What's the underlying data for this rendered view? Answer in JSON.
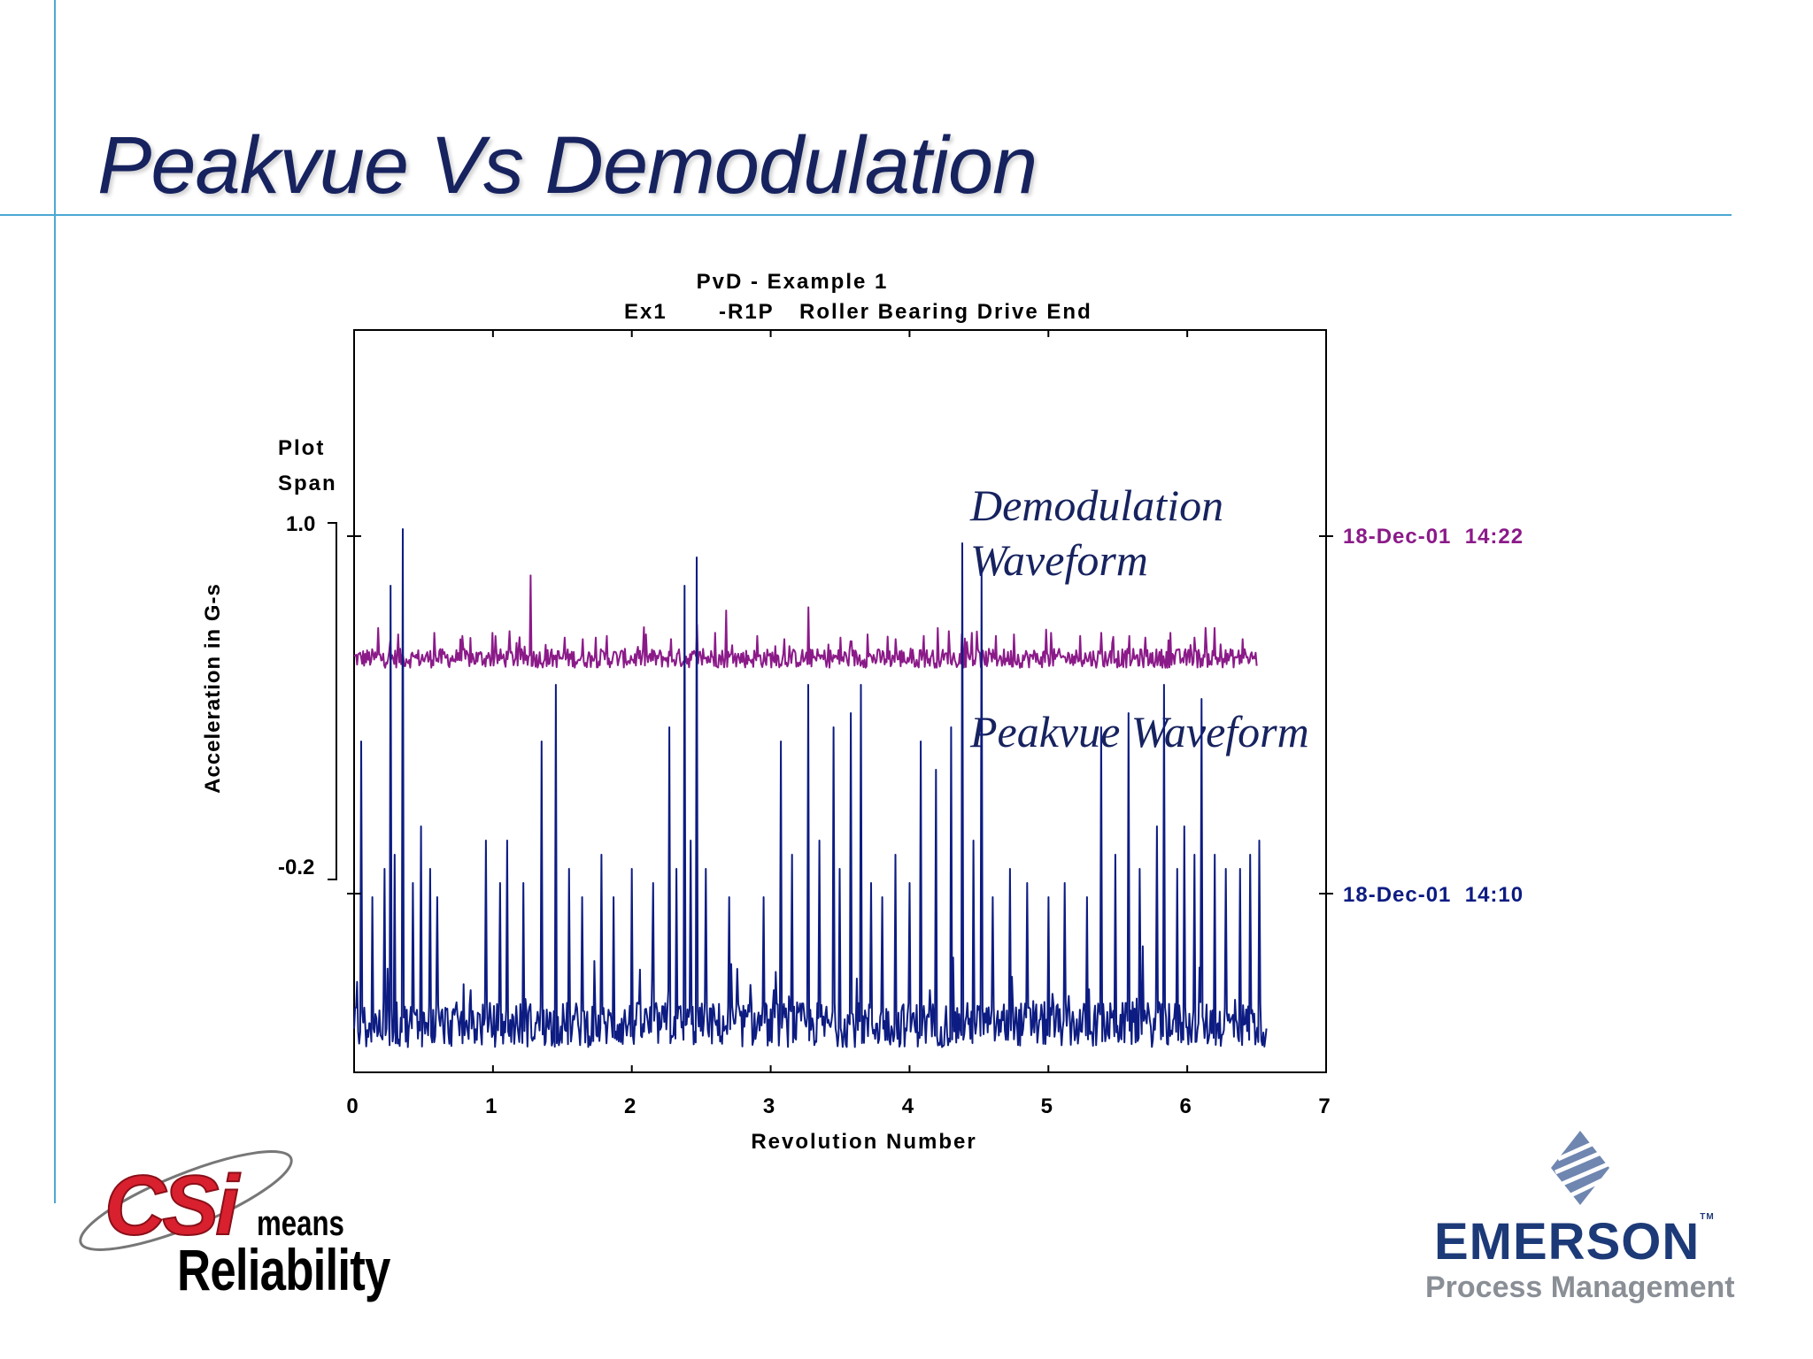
{
  "slide": {
    "title": "Peakvue Vs Demodulation"
  },
  "chart_data": {
    "type": "line",
    "title": "PvD  - Example 1",
    "subtitle": [
      "Ex1",
      "-R1P",
      "Roller Bearing Drive End"
    ],
    "xlabel": "Revolution Number",
    "ylabel": "Acceleration in G-s",
    "xlim": [
      0,
      7
    ],
    "x_ticks": [
      "0",
      "1",
      "2",
      "3",
      "4",
      "5",
      "6",
      "7"
    ],
    "plot_span": {
      "label_line1": "Plot",
      "label_line2": "Span",
      "top": "1.0",
      "bottom": "-0.2"
    },
    "annotations": [
      "Demodulation",
      "Waveform",
      "Peakvue Waveform"
    ],
    "series": [
      {
        "name": "Demodulation Waveform",
        "timestamp": "18-Dec-01  14:22",
        "color": "#8b1a89",
        "x_end": 6.5,
        "baseline": 0.0,
        "noise": 0.06,
        "spikes": [
          [
            0.17,
            0.19
          ],
          [
            0.32,
            0.15
          ],
          [
            0.58,
            0.16
          ],
          [
            0.78,
            0.14
          ],
          [
            1.0,
            0.16
          ],
          [
            1.12,
            0.17
          ],
          [
            1.27,
            0.52
          ],
          [
            1.52,
            0.13
          ],
          [
            1.65,
            0.12
          ],
          [
            1.82,
            0.14
          ],
          [
            2.1,
            0.15
          ],
          [
            2.28,
            0.12
          ],
          [
            2.47,
            0.21
          ],
          [
            2.6,
            0.16
          ],
          [
            2.68,
            0.3
          ],
          [
            2.9,
            0.14
          ],
          [
            3.1,
            0.12
          ],
          [
            3.27,
            0.32
          ],
          [
            3.5,
            0.13
          ],
          [
            3.7,
            0.15
          ],
          [
            3.9,
            0.12
          ],
          [
            4.1,
            0.14
          ],
          [
            4.2,
            0.19
          ],
          [
            4.28,
            0.17
          ],
          [
            4.45,
            0.16
          ],
          [
            4.62,
            0.14
          ],
          [
            4.75,
            0.15
          ],
          [
            4.98,
            0.18
          ],
          [
            5.02,
            0.16
          ],
          [
            5.23,
            0.14
          ],
          [
            5.38,
            0.16
          ],
          [
            5.58,
            0.14
          ],
          [
            5.7,
            0.13
          ],
          [
            5.88,
            0.16
          ],
          [
            6.05,
            0.13
          ],
          [
            6.2,
            0.19
          ],
          [
            6.4,
            0.12
          ]
        ]
      },
      {
        "name": "Peakvue Waveform",
        "timestamp": "18-Dec-01  14:10",
        "color": "#0d1c82",
        "x_end": 6.57,
        "baseline": 0.0,
        "noise": 0.08,
        "spikes": [
          [
            0.05,
            1.0
          ],
          [
            0.13,
            0.45
          ],
          [
            0.22,
            0.55
          ],
          [
            0.26,
            1.55
          ],
          [
            0.29,
            0.6
          ],
          [
            0.35,
            1.75
          ],
          [
            0.42,
            0.5
          ],
          [
            0.48,
            0.7
          ],
          [
            0.55,
            0.55
          ],
          [
            0.6,
            0.45
          ],
          [
            0.95,
            0.65
          ],
          [
            1.05,
            0.5
          ],
          [
            1.1,
            0.65
          ],
          [
            1.22,
            0.5
          ],
          [
            1.35,
            1.0
          ],
          [
            1.45,
            1.2
          ],
          [
            1.55,
            0.55
          ],
          [
            1.64,
            0.45
          ],
          [
            1.78,
            0.6
          ],
          [
            1.87,
            0.45
          ],
          [
            2.0,
            0.55
          ],
          [
            2.15,
            0.5
          ],
          [
            2.27,
            1.05
          ],
          [
            2.32,
            0.55
          ],
          [
            2.38,
            1.55
          ],
          [
            2.42,
            0.65
          ],
          [
            2.47,
            1.65
          ],
          [
            2.53,
            0.55
          ],
          [
            2.7,
            0.45
          ],
          [
            2.95,
            0.45
          ],
          [
            3.07,
            1.0
          ],
          [
            3.15,
            0.6
          ],
          [
            3.27,
            1.2
          ],
          [
            3.35,
            0.65
          ],
          [
            3.45,
            1.05
          ],
          [
            3.5,
            0.55
          ],
          [
            3.58,
            1.1
          ],
          [
            3.65,
            1.2
          ],
          [
            3.72,
            0.5
          ],
          [
            3.8,
            0.45
          ],
          [
            3.9,
            0.6
          ],
          [
            4.0,
            0.5
          ],
          [
            4.08,
            1.0
          ],
          [
            4.19,
            0.9
          ],
          [
            4.3,
            1.05
          ],
          [
            4.38,
            1.7
          ],
          [
            4.46,
            0.65
          ],
          [
            4.52,
            1.6
          ],
          [
            4.6,
            0.45
          ],
          [
            4.72,
            0.55
          ],
          [
            4.85,
            0.5
          ],
          [
            5.0,
            0.45
          ],
          [
            5.12,
            0.5
          ],
          [
            5.28,
            0.45
          ],
          [
            5.38,
            1.05
          ],
          [
            5.48,
            0.6
          ],
          [
            5.58,
            1.1
          ],
          [
            5.66,
            0.55
          ],
          [
            5.78,
            0.7
          ],
          [
            5.83,
            1.2
          ],
          [
            5.93,
            0.55
          ],
          [
            5.98,
            0.7
          ],
          [
            6.05,
            0.6
          ],
          [
            6.1,
            1.15
          ],
          [
            6.2,
            0.6
          ],
          [
            6.28,
            0.55
          ],
          [
            6.38,
            0.55
          ],
          [
            6.45,
            0.6
          ],
          [
            6.52,
            0.65
          ]
        ]
      }
    ]
  },
  "logos": {
    "csi": {
      "brand": "CSi",
      "line1": "means",
      "line2": "Reliability"
    },
    "emerson": {
      "name": "EMERSON",
      "tm": "TM",
      "sub": "Process Management"
    }
  }
}
